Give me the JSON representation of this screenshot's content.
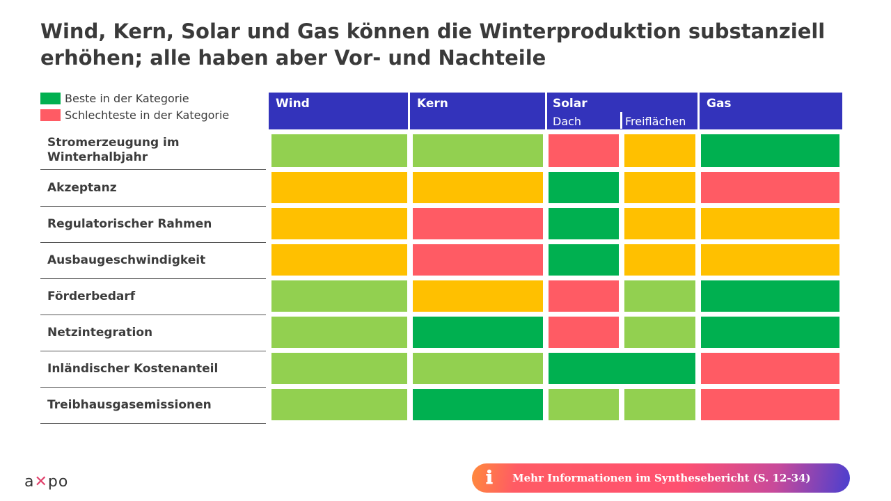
{
  "title": "Wind, Kern, Solar und Gas können die Winterproduktion substanziell erhöhen; alle haben aber Vor- und Nachteile",
  "legend": {
    "best": "Beste in der Kategorie",
    "worst": "Schlechteste in der Kategorie"
  },
  "colors": {
    "best": "#00B050",
    "good": "#92D050",
    "medium": "#FFC000",
    "worst": "#FF5B64",
    "header": "#3333BB"
  },
  "columns": {
    "wind": "Wind",
    "kern": "Kern",
    "solar": "Solar",
    "solar_dach": "Dach",
    "solar_frei": "Freiflächen",
    "gas": "Gas"
  },
  "rows": [
    {
      "label": "Stromerzeugung im Winterhalbjahr",
      "ratings": [
        "good",
        "good",
        "worst",
        "medium",
        "best"
      ]
    },
    {
      "label": "Akzeptanz",
      "ratings": [
        "medium",
        "medium",
        "best",
        "medium",
        "worst"
      ]
    },
    {
      "label": "Regulatorischer Rahmen",
      "ratings": [
        "medium",
        "worst",
        "best",
        "medium",
        "medium"
      ]
    },
    {
      "label": "Ausbaugeschwindigkeit",
      "ratings": [
        "medium",
        "worst",
        "best",
        "medium",
        "medium"
      ]
    },
    {
      "label": "Förderbedarf",
      "ratings": [
        "good",
        "medium",
        "worst",
        "good",
        "best"
      ]
    },
    {
      "label": "Netzintegration",
      "ratings": [
        "good",
        "best",
        "worst",
        "good",
        "best"
      ]
    },
    {
      "label": "Inländischer Kostenanteil",
      "ratings": [
        "good",
        "good",
        "best",
        "best",
        "worst"
      ],
      "solar_merged": true
    },
    {
      "label": "Treibhausgasemissionen",
      "ratings": [
        "good",
        "best",
        "good",
        "good",
        "worst"
      ]
    }
  ],
  "footer": {
    "info_button": "Mehr Informationen im Synthesebericht (S. 12-34)",
    "logo": "axpo"
  }
}
